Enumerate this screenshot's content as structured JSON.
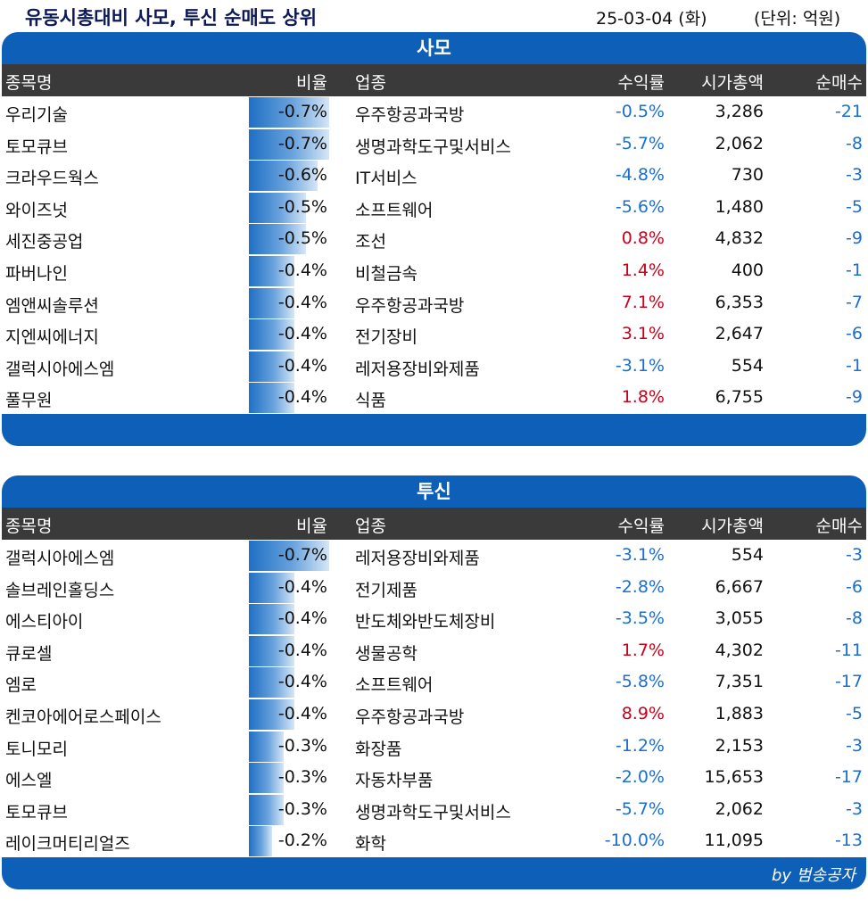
{
  "header": {
    "title": "유동시총대비 사모, 투신 순매도 상위",
    "date": "25-03-04 (화)",
    "unit": "(단위: 억원)"
  },
  "columns": {
    "name": "종목명",
    "ratio": "비율",
    "industry": "업종",
    "return": "수익률",
    "market_cap": "시가총액",
    "net_count": "순매수"
  },
  "sections": [
    {
      "title": "사모",
      "rows": [
        {
          "name": "우리기술",
          "ratio": "-0.7%",
          "ratio_value": 0.7,
          "industry": "우주항공과국방",
          "return": "-0.5%",
          "return_sign": "neg",
          "market_cap": "3,286",
          "net": "-21"
        },
        {
          "name": "토모큐브",
          "ratio": "-0.7%",
          "ratio_value": 0.7,
          "industry": "생명과학도구및서비스",
          "return": "-5.7%",
          "return_sign": "neg",
          "market_cap": "2,062",
          "net": "-8"
        },
        {
          "name": "크라우드웍스",
          "ratio": "-0.6%",
          "ratio_value": 0.6,
          "industry": "IT서비스",
          "return": "-4.8%",
          "return_sign": "neg",
          "market_cap": "730",
          "net": "-3"
        },
        {
          "name": "와이즈넛",
          "ratio": "-0.5%",
          "ratio_value": 0.5,
          "industry": "소프트웨어",
          "return": "-5.6%",
          "return_sign": "neg",
          "market_cap": "1,480",
          "net": "-5"
        },
        {
          "name": "세진중공업",
          "ratio": "-0.5%",
          "ratio_value": 0.5,
          "industry": "조선",
          "return": "0.8%",
          "return_sign": "pos",
          "market_cap": "4,832",
          "net": "-9"
        },
        {
          "name": "파버나인",
          "ratio": "-0.4%",
          "ratio_value": 0.4,
          "industry": "비철금속",
          "return": "1.4%",
          "return_sign": "pos",
          "market_cap": "400",
          "net": "-1"
        },
        {
          "name": "엠앤씨솔루션",
          "ratio": "-0.4%",
          "ratio_value": 0.4,
          "industry": "우주항공과국방",
          "return": "7.1%",
          "return_sign": "pos",
          "market_cap": "6,353",
          "net": "-7"
        },
        {
          "name": "지엔씨에너지",
          "ratio": "-0.4%",
          "ratio_value": 0.4,
          "industry": "전기장비",
          "return": "3.1%",
          "return_sign": "pos",
          "market_cap": "2,647",
          "net": "-6"
        },
        {
          "name": "갤럭시아에스엠",
          "ratio": "-0.4%",
          "ratio_value": 0.4,
          "industry": "레저용장비와제품",
          "return": "-3.1%",
          "return_sign": "neg",
          "market_cap": "554",
          "net": "-1"
        },
        {
          "name": "풀무원",
          "ratio": "-0.4%",
          "ratio_value": 0.4,
          "industry": "식품",
          "return": "1.8%",
          "return_sign": "pos",
          "market_cap": "6,755",
          "net": "-9"
        }
      ]
    },
    {
      "title": "투신",
      "rows": [
        {
          "name": "갤럭시아에스엠",
          "ratio": "-0.7%",
          "ratio_value": 0.7,
          "industry": "레저용장비와제품",
          "return": "-3.1%",
          "return_sign": "neg",
          "market_cap": "554",
          "net": "-3"
        },
        {
          "name": "솔브레인홀딩스",
          "ratio": "-0.4%",
          "ratio_value": 0.4,
          "industry": "전기제품",
          "return": "-2.8%",
          "return_sign": "neg",
          "market_cap": "6,667",
          "net": "-6"
        },
        {
          "name": "에스티아이",
          "ratio": "-0.4%",
          "ratio_value": 0.4,
          "industry": "반도체와반도체장비",
          "return": "-3.5%",
          "return_sign": "neg",
          "market_cap": "3,055",
          "net": "-8"
        },
        {
          "name": "큐로셀",
          "ratio": "-0.4%",
          "ratio_value": 0.4,
          "industry": "생물공학",
          "return": "1.7%",
          "return_sign": "pos",
          "market_cap": "4,302",
          "net": "-11"
        },
        {
          "name": "엠로",
          "ratio": "-0.4%",
          "ratio_value": 0.4,
          "industry": "소프트웨어",
          "return": "-5.8%",
          "return_sign": "neg",
          "market_cap": "7,351",
          "net": "-17"
        },
        {
          "name": "켄코아에어로스페이스",
          "ratio": "-0.4%",
          "ratio_value": 0.4,
          "industry": "우주항공과국방",
          "return": "8.9%",
          "return_sign": "pos",
          "market_cap": "1,883",
          "net": "-5"
        },
        {
          "name": "토니모리",
          "ratio": "-0.3%",
          "ratio_value": 0.3,
          "industry": "화장품",
          "return": "-1.2%",
          "return_sign": "neg",
          "market_cap": "2,153",
          "net": "-3"
        },
        {
          "name": "에스엘",
          "ratio": "-0.3%",
          "ratio_value": 0.3,
          "industry": "자동차부품",
          "return": "-2.0%",
          "return_sign": "neg",
          "market_cap": "15,653",
          "net": "-17"
        },
        {
          "name": "토모큐브",
          "ratio": "-0.3%",
          "ratio_value": 0.3,
          "industry": "생명과학도구및서비스",
          "return": "-5.7%",
          "return_sign": "neg",
          "market_cap": "2,062",
          "net": "-3"
        },
        {
          "name": "레이크머티리얼즈",
          "ratio": "-0.2%",
          "ratio_value": 0.2,
          "industry": "화학",
          "return": "-10.0%",
          "return_sign": "neg",
          "market_cap": "11,095",
          "net": "-13"
        }
      ]
    }
  ],
  "footer": {
    "credit": "by 범송공자"
  },
  "colors": {
    "header_blue": "#0d5fb8",
    "column_header": "#3a3a3a",
    "negative": "#1a6fd0",
    "positive": "#c8001a"
  }
}
